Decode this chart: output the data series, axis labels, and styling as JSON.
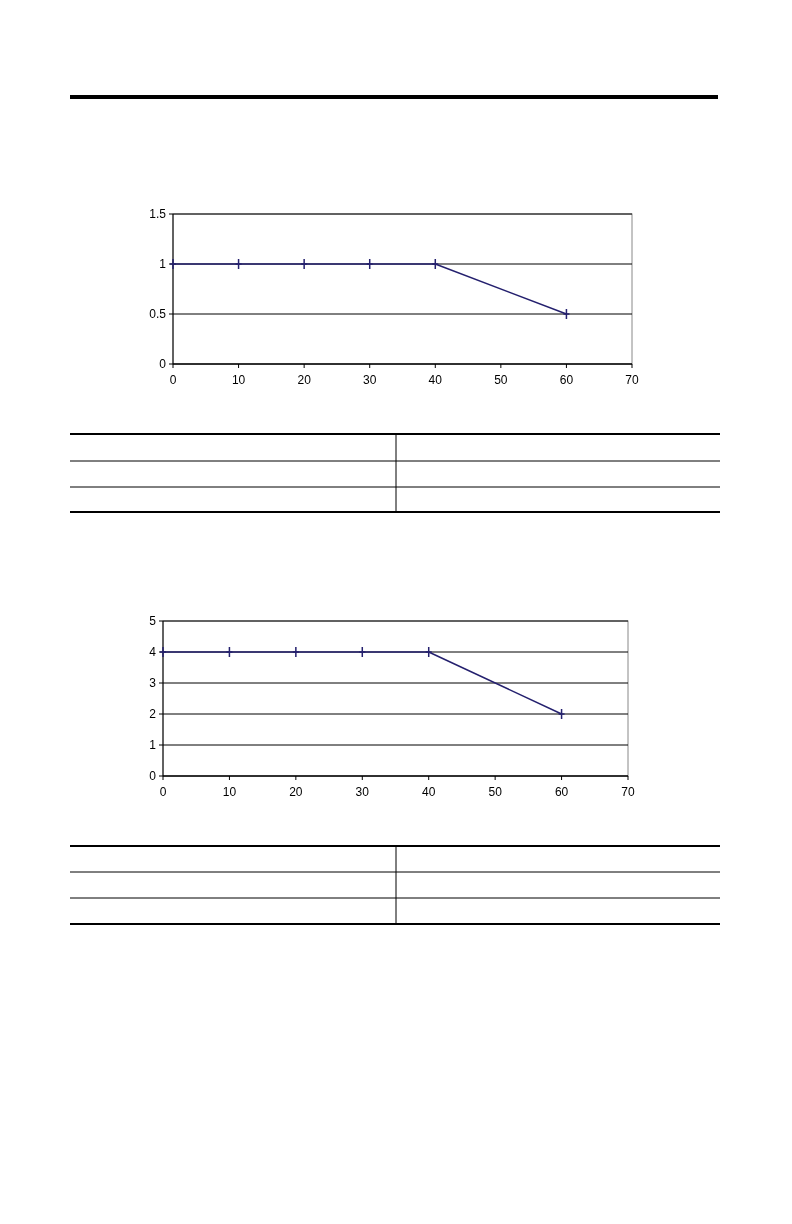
{
  "chart_data": [
    {
      "type": "line",
      "x": [
        0,
        10,
        20,
        30,
        40,
        60
      ],
      "values": [
        1,
        1,
        1,
        1,
        1,
        0.5
      ],
      "color": "#24206e",
      "xlim": [
        0,
        70
      ],
      "xticks": [
        0,
        10,
        20,
        30,
        40,
        50,
        60,
        70
      ],
      "ylim": [
        0,
        1.5
      ],
      "yticks": [
        0,
        0.5,
        1,
        1.5
      ],
      "grid": "y",
      "marker": "cross"
    },
    {
      "type": "line",
      "x": [
        0,
        10,
        20,
        30,
        40,
        60
      ],
      "values": [
        4,
        4,
        4,
        4,
        4,
        2
      ],
      "color": "#24206e",
      "xlim": [
        0,
        70
      ],
      "xticks": [
        0,
        10,
        20,
        30,
        40,
        50,
        60,
        70
      ],
      "ylim": [
        0,
        5
      ],
      "yticks": [
        0,
        1,
        2,
        3,
        4,
        5
      ],
      "grid": "y",
      "marker": "cross"
    }
  ]
}
